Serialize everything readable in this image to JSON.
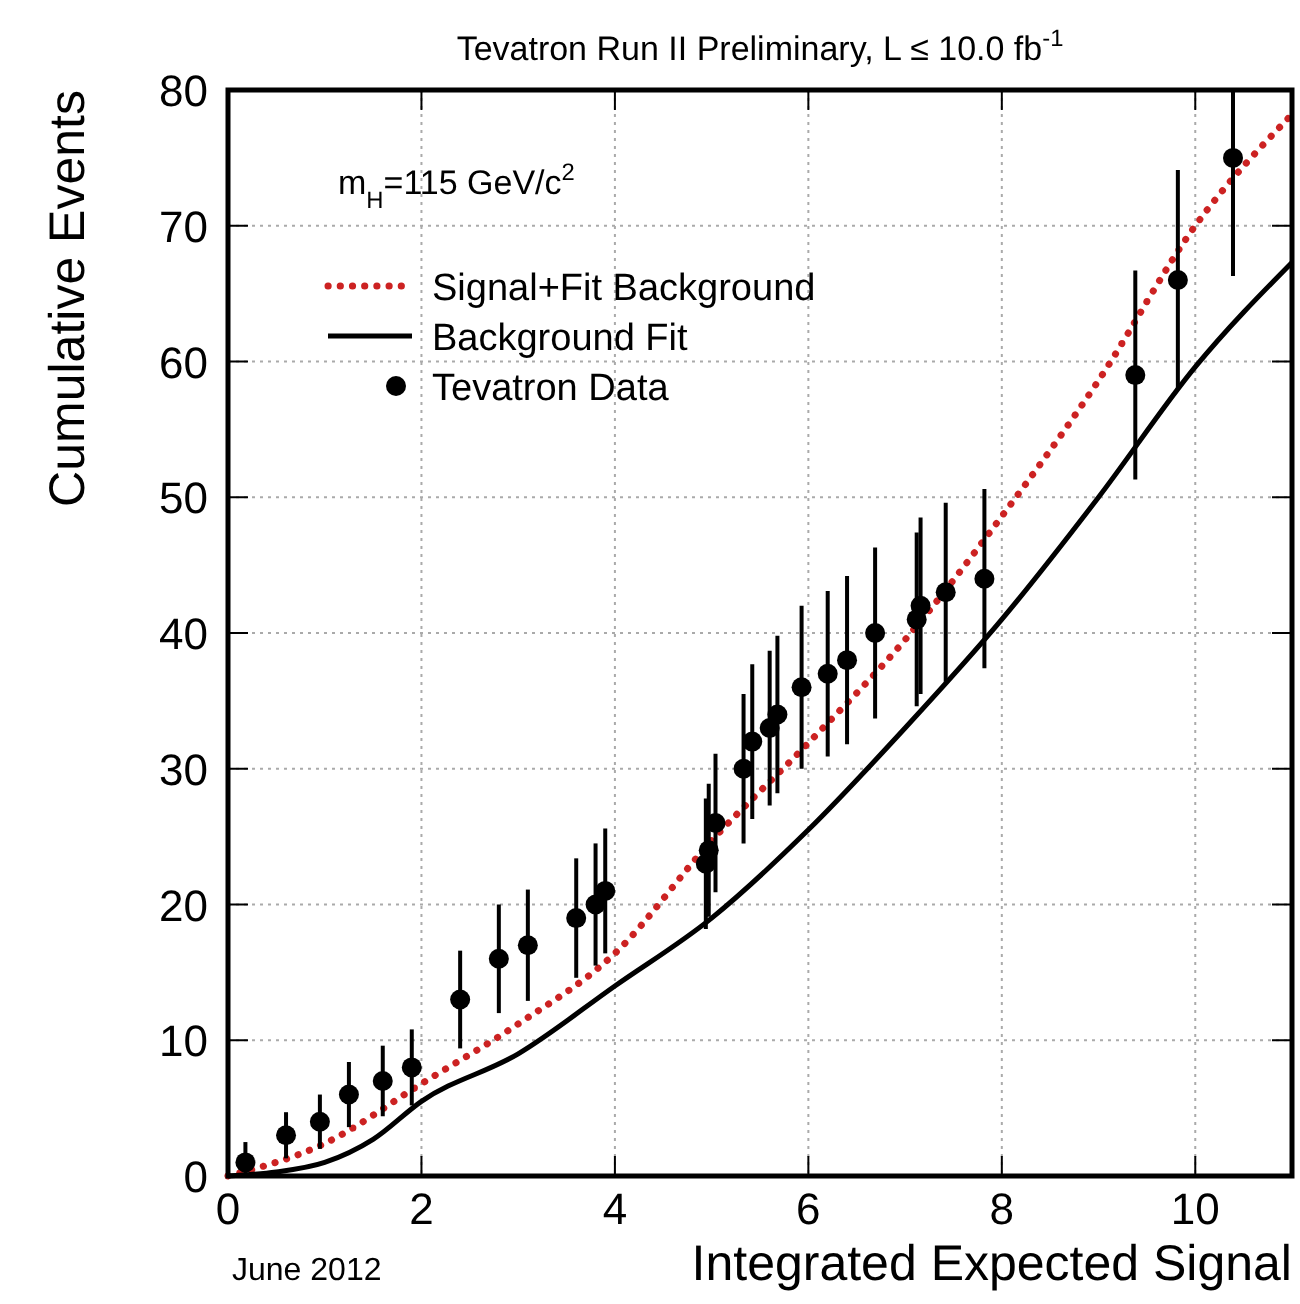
{
  "chart_data": {
    "type": "line",
    "title": "Tevatron Run II Preliminary, L ≤ 10.0 fb$^{-1}$",
    "xlabel": "Integrated Expected Signal",
    "ylabel": "Cumulative Events",
    "annotations": [
      "m$_{H}$=115 GeV/c$^{2}$",
      "June 2012"
    ],
    "xlim": [
      0,
      11
    ],
    "ylim": [
      0,
      80
    ],
    "xticks": [
      0,
      2,
      4,
      6,
      8,
      10
    ],
    "yticks": [
      0,
      10,
      20,
      30,
      40,
      50,
      60,
      70,
      80
    ],
    "grid": true,
    "legend": "top left",
    "series": [
      {
        "name": "Signal+Fit Background",
        "color": "#cc2222",
        "line_style": "dotted",
        "x": [
          0,
          1,
          2,
          3,
          4,
          5,
          6,
          7,
          8,
          9,
          10,
          11
        ],
        "values": [
          0,
          2.4,
          6.8,
          11.2,
          16.4,
          24.7,
          31.9,
          39.5,
          48.6,
          58.6,
          70,
          78.2
        ]
      },
      {
        "name": "Background Fit",
        "color": "#000000",
        "line_style": "solid",
        "x": [
          0,
          0.5,
          1,
          1.5,
          2,
          3,
          4,
          5,
          6,
          7,
          8,
          9,
          10,
          11
        ],
        "values": [
          0,
          0.3,
          1,
          2.7,
          5.5,
          9,
          14,
          19,
          25.5,
          33,
          41,
          50,
          59.6,
          67.3
        ]
      },
      {
        "name": "Tevatron Data",
        "type": "scatter",
        "color": "#000000",
        "marker": "circle",
        "x": [
          0.18,
          0.6,
          0.95,
          1.25,
          1.6,
          1.9,
          2.4,
          2.8,
          3.1,
          3.6,
          3.8,
          3.9,
          4.94,
          4.97,
          5.04,
          5.33,
          5.42,
          5.6,
          5.68,
          5.93,
          6.2,
          6.4,
          6.69,
          7.12,
          7.16,
          7.42,
          7.82,
          9.38,
          9.82,
          10.39
        ],
        "values": [
          1,
          3,
          4,
          6,
          7,
          8,
          13,
          16,
          17,
          19,
          20,
          21,
          23,
          24,
          26,
          30,
          32,
          33,
          34,
          36,
          37,
          38,
          40,
          41,
          42,
          43,
          44,
          59,
          66,
          75
        ],
        "errors": [
          [
            0,
            2.5
          ],
          1.7,
          2,
          2.4,
          2.6,
          2.8,
          3.6,
          4,
          4.1,
          4.4,
          4.5,
          4.6,
          4.8,
          4.9,
          5.1,
          5.5,
          5.7,
          5.7,
          5.8,
          6,
          6.1,
          6.2,
          6.3,
          6.4,
          6.5,
          6.6,
          6.6,
          7.7,
          8.1,
          [
            66.3,
            80
          ]
        ]
      }
    ]
  }
}
